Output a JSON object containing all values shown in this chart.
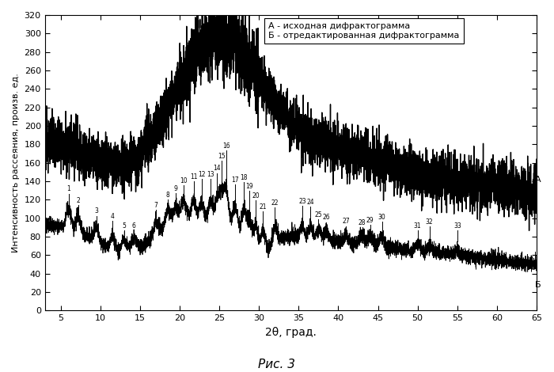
{
  "title": "",
  "xlabel": "2θ, град.",
  "ylabel": "Интенсивность рассеяния, произв. ед.",
  "caption": "Рис. 3",
  "legend_A": "А - исходная дифрактограмма",
  "legend_B": "Б - отредактированная дифрактограмма",
  "label_A": "А",
  "label_B": "Б",
  "xlim": [
    3,
    65
  ],
  "ylim": [
    0,
    320
  ],
  "yticks": [
    0,
    20,
    40,
    60,
    80,
    100,
    120,
    140,
    160,
    180,
    200,
    220,
    240,
    260,
    280,
    300,
    320
  ],
  "xticks": [
    5,
    10,
    15,
    20,
    25,
    30,
    35,
    40,
    45,
    50,
    55,
    60,
    65
  ],
  "background_color": "#ffffff",
  "line_color": "#000000",
  "peak_annot": [
    [
      6.0,
      "1",
      18,
      8
    ],
    [
      7.2,
      "2",
      18,
      8
    ],
    [
      9.5,
      "3",
      14,
      6
    ],
    [
      11.5,
      "4",
      14,
      6
    ],
    [
      13.0,
      "5",
      14,
      6
    ],
    [
      14.2,
      "6",
      14,
      6
    ],
    [
      17.0,
      "7",
      16,
      8
    ],
    [
      18.5,
      "8",
      14,
      6
    ],
    [
      19.5,
      "9",
      14,
      6
    ],
    [
      20.5,
      "10",
      20,
      8
    ],
    [
      21.8,
      "11",
      22,
      8
    ],
    [
      22.8,
      "12",
      25,
      8
    ],
    [
      23.9,
      "13",
      25,
      8
    ],
    [
      24.7,
      "14",
      28,
      8
    ],
    [
      25.3,
      "15",
      32,
      8
    ],
    [
      25.9,
      "16",
      36,
      8
    ],
    [
      27.0,
      "17",
      30,
      8
    ],
    [
      28.1,
      "18",
      30,
      8
    ],
    [
      28.8,
      "19",
      25,
      8
    ],
    [
      29.6,
      "20",
      28,
      8
    ],
    [
      30.5,
      "21",
      22,
      8
    ],
    [
      32.0,
      "22",
      20,
      8
    ],
    [
      35.5,
      "23",
      16,
      6
    ],
    [
      36.5,
      "24",
      16,
      6
    ],
    [
      37.5,
      "25",
      14,
      6
    ],
    [
      38.5,
      "26",
      14,
      6
    ],
    [
      41.0,
      "27",
      14,
      6
    ],
    [
      43.0,
      "28",
      14,
      6
    ],
    [
      44.0,
      "29",
      14,
      6
    ],
    [
      45.5,
      "30",
      16,
      6
    ],
    [
      50.0,
      "31",
      14,
      6
    ],
    [
      51.5,
      "32",
      14,
      6
    ],
    [
      55.0,
      "33",
      12,
      6
    ]
  ]
}
